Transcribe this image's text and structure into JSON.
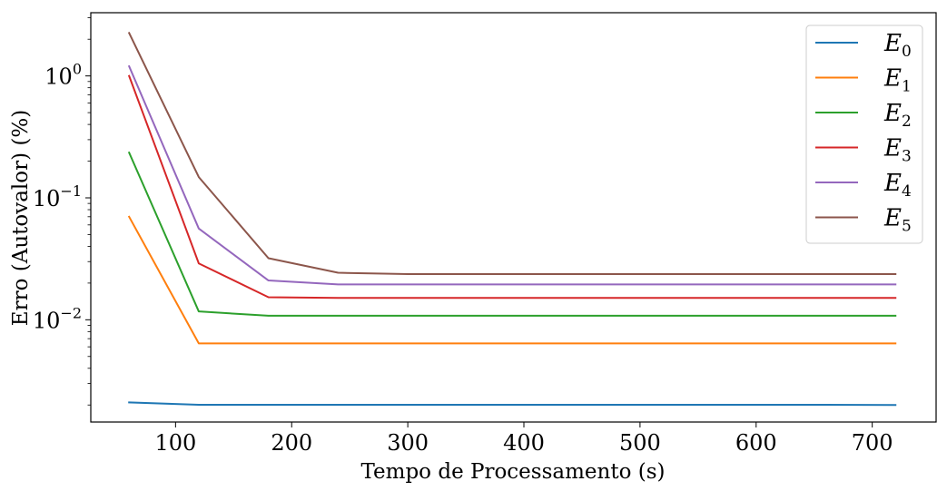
{
  "chart_data": {
    "type": "line",
    "title": "",
    "xlabel": "Tempo de Processamento (s)",
    "ylabel": "Erro (Autovalor) (%)",
    "yscale": "log",
    "xlim": [
      27,
      755
    ],
    "ylim": [
      0.00145,
      3.3
    ],
    "x_ticks": [
      100,
      200,
      300,
      400,
      500,
      600,
      700
    ],
    "x_tick_labels": [
      "100",
      "200",
      "300",
      "400",
      "500",
      "600",
      "700"
    ],
    "y_ticks": [
      0.01,
      0.1,
      1
    ],
    "y_tick_labels": [
      {
        "base": "10",
        "exp": "−2"
      },
      {
        "base": "10",
        "exp": "−1"
      },
      {
        "base": "10",
        "exp": "0"
      }
    ],
    "grid": false,
    "legend_position": "top-right",
    "x": [
      60,
      120,
      180,
      240,
      300,
      360,
      420,
      480,
      540,
      600,
      660,
      720
    ],
    "series": [
      {
        "name": "E",
        "sub": "0",
        "color": "#1f77b4",
        "values": [
          0.0021,
          0.00201,
          0.00201,
          0.00201,
          0.00201,
          0.00201,
          0.00201,
          0.00201,
          0.00201,
          0.00201,
          0.00201,
          0.002
        ]
      },
      {
        "name": "E",
        "sub": "1",
        "color": "#ff7f0e",
        "values": [
          0.07,
          0.0064,
          0.0064,
          0.0064,
          0.0064,
          0.0064,
          0.0064,
          0.0064,
          0.0064,
          0.0064,
          0.0064,
          0.0064
        ]
      },
      {
        "name": "E",
        "sub": "2",
        "color": "#2ca02c",
        "values": [
          0.235,
          0.0117,
          0.0108,
          0.0108,
          0.0108,
          0.0108,
          0.0108,
          0.0108,
          0.0108,
          0.0108,
          0.0108,
          0.0108
        ]
      },
      {
        "name": "E",
        "sub": "3",
        "color": "#d62728",
        "values": [
          1.0,
          0.029,
          0.0153,
          0.0151,
          0.0151,
          0.0151,
          0.0151,
          0.0151,
          0.0151,
          0.0151,
          0.0151,
          0.0151
        ]
      },
      {
        "name": "E",
        "sub": "4",
        "color": "#9467bd",
        "values": [
          1.2,
          0.056,
          0.021,
          0.0195,
          0.0195,
          0.0195,
          0.0195,
          0.0195,
          0.0195,
          0.0195,
          0.0195,
          0.0195
        ]
      },
      {
        "name": "E",
        "sub": "5",
        "color": "#8c564b",
        "values": [
          2.25,
          0.148,
          0.032,
          0.0243,
          0.0237,
          0.0237,
          0.0237,
          0.0237,
          0.0237,
          0.0237,
          0.0237,
          0.0237
        ]
      }
    ]
  }
}
